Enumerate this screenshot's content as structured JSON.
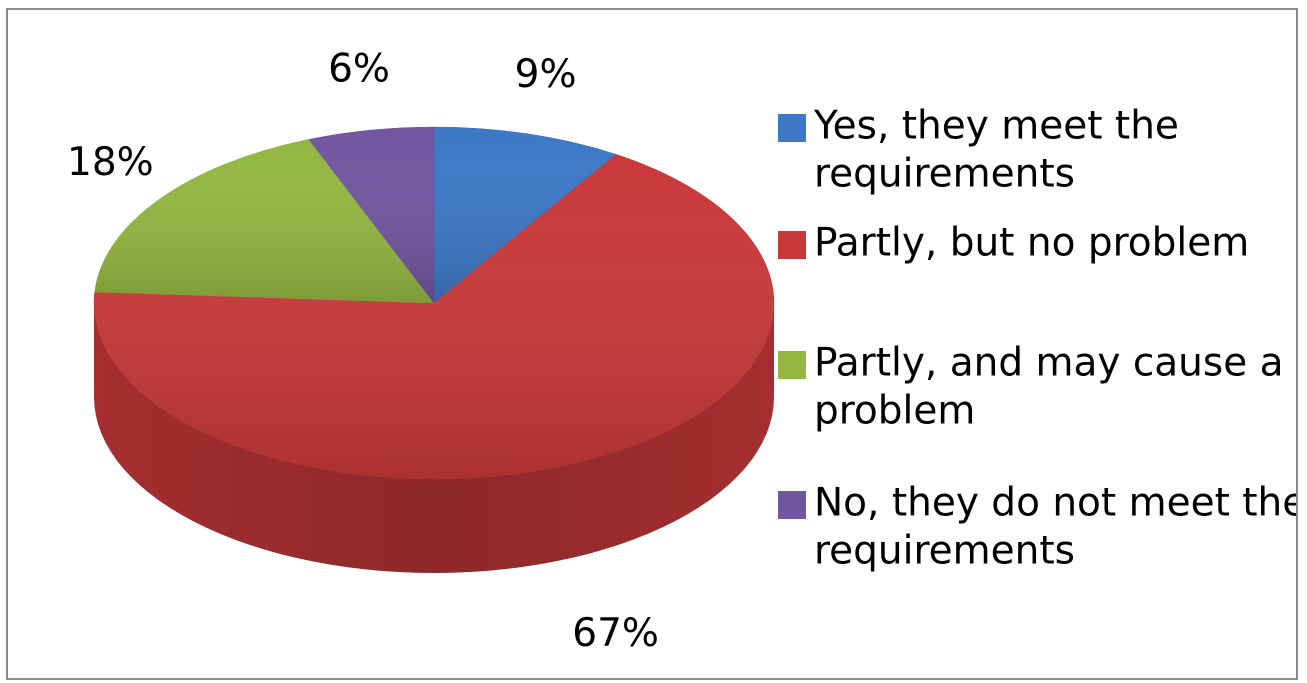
{
  "chart_data": {
    "type": "pie",
    "title": "",
    "categories": [
      "Yes, they meet the requirements",
      "Partly, but no problem",
      "Partly, and may cause a problem",
      "No, they do not meet the requirements"
    ],
    "values": [
      9,
      67,
      18,
      6
    ],
    "value_labels": [
      "9%",
      "67%",
      "18%",
      "6%"
    ],
    "colors": [
      "#3d78c6",
      "#c9393a",
      "#93b741",
      "#7256a0"
    ],
    "legend": {
      "position": "right",
      "items": [
        {
          "lines": [
            "Yes, they meet the",
            "requirements"
          ],
          "color": "#3d78c6"
        },
        {
          "lines": [
            "Partly, but no problem"
          ],
          "color": "#c9393a"
        },
        {
          "lines": [
            "Partly, and may cause a",
            "problem"
          ],
          "color": "#93b741"
        },
        {
          "lines": [
            "No, they do not meet the",
            "requirements"
          ],
          "color": "#7256a0"
        }
      ]
    },
    "style": "3d-pie"
  }
}
